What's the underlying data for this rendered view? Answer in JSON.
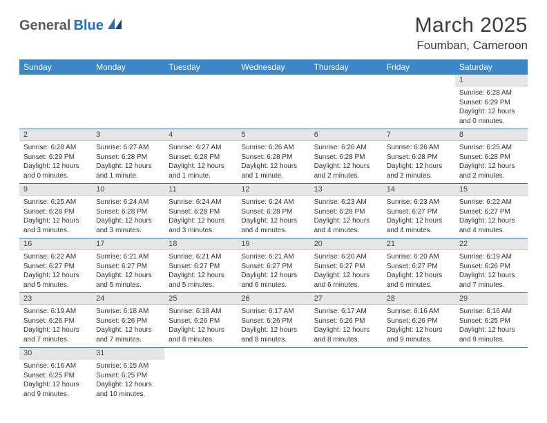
{
  "logo": {
    "part1": "General",
    "part2": "Blue"
  },
  "title": "March 2025",
  "location": "Foumban, Cameroon",
  "colors": {
    "header_bg": "#3b87c8",
    "header_text": "#ffffff",
    "daynum_bg": "#e6e6e6",
    "cell_border": "#3b6fa8",
    "logo_gray": "#5a5a5a",
    "logo_blue": "#2a6fb5"
  },
  "weekdays": [
    "Sunday",
    "Monday",
    "Tuesday",
    "Wednesday",
    "Thursday",
    "Friday",
    "Saturday"
  ],
  "weeks": [
    [
      null,
      null,
      null,
      null,
      null,
      null,
      {
        "n": "1",
        "sunrise": "Sunrise: 6:28 AM",
        "sunset": "Sunset: 6:29 PM",
        "day1": "Daylight: 12 hours",
        "day2": "and 0 minutes."
      }
    ],
    [
      {
        "n": "2",
        "sunrise": "Sunrise: 6:28 AM",
        "sunset": "Sunset: 6:29 PM",
        "day1": "Daylight: 12 hours",
        "day2": "and 0 minutes."
      },
      {
        "n": "3",
        "sunrise": "Sunrise: 6:27 AM",
        "sunset": "Sunset: 6:28 PM",
        "day1": "Daylight: 12 hours",
        "day2": "and 1 minute."
      },
      {
        "n": "4",
        "sunrise": "Sunrise: 6:27 AM",
        "sunset": "Sunset: 6:28 PM",
        "day1": "Daylight: 12 hours",
        "day2": "and 1 minute."
      },
      {
        "n": "5",
        "sunrise": "Sunrise: 6:26 AM",
        "sunset": "Sunset: 6:28 PM",
        "day1": "Daylight: 12 hours",
        "day2": "and 1 minute."
      },
      {
        "n": "6",
        "sunrise": "Sunrise: 6:26 AM",
        "sunset": "Sunset: 6:28 PM",
        "day1": "Daylight: 12 hours",
        "day2": "and 2 minutes."
      },
      {
        "n": "7",
        "sunrise": "Sunrise: 6:26 AM",
        "sunset": "Sunset: 6:28 PM",
        "day1": "Daylight: 12 hours",
        "day2": "and 2 minutes."
      },
      {
        "n": "8",
        "sunrise": "Sunrise: 6:25 AM",
        "sunset": "Sunset: 6:28 PM",
        "day1": "Daylight: 12 hours",
        "day2": "and 2 minutes."
      }
    ],
    [
      {
        "n": "9",
        "sunrise": "Sunrise: 6:25 AM",
        "sunset": "Sunset: 6:28 PM",
        "day1": "Daylight: 12 hours",
        "day2": "and 3 minutes."
      },
      {
        "n": "10",
        "sunrise": "Sunrise: 6:24 AM",
        "sunset": "Sunset: 6:28 PM",
        "day1": "Daylight: 12 hours",
        "day2": "and 3 minutes."
      },
      {
        "n": "11",
        "sunrise": "Sunrise: 6:24 AM",
        "sunset": "Sunset: 6:28 PM",
        "day1": "Daylight: 12 hours",
        "day2": "and 3 minutes."
      },
      {
        "n": "12",
        "sunrise": "Sunrise: 6:24 AM",
        "sunset": "Sunset: 6:28 PM",
        "day1": "Daylight: 12 hours",
        "day2": "and 4 minutes."
      },
      {
        "n": "13",
        "sunrise": "Sunrise: 6:23 AM",
        "sunset": "Sunset: 6:28 PM",
        "day1": "Daylight: 12 hours",
        "day2": "and 4 minutes."
      },
      {
        "n": "14",
        "sunrise": "Sunrise: 6:23 AM",
        "sunset": "Sunset: 6:27 PM",
        "day1": "Daylight: 12 hours",
        "day2": "and 4 minutes."
      },
      {
        "n": "15",
        "sunrise": "Sunrise: 6:22 AM",
        "sunset": "Sunset: 6:27 PM",
        "day1": "Daylight: 12 hours",
        "day2": "and 4 minutes."
      }
    ],
    [
      {
        "n": "16",
        "sunrise": "Sunrise: 6:22 AM",
        "sunset": "Sunset: 6:27 PM",
        "day1": "Daylight: 12 hours",
        "day2": "and 5 minutes."
      },
      {
        "n": "17",
        "sunrise": "Sunrise: 6:21 AM",
        "sunset": "Sunset: 6:27 PM",
        "day1": "Daylight: 12 hours",
        "day2": "and 5 minutes."
      },
      {
        "n": "18",
        "sunrise": "Sunrise: 6:21 AM",
        "sunset": "Sunset: 6:27 PM",
        "day1": "Daylight: 12 hours",
        "day2": "and 5 minutes."
      },
      {
        "n": "19",
        "sunrise": "Sunrise: 6:21 AM",
        "sunset": "Sunset: 6:27 PM",
        "day1": "Daylight: 12 hours",
        "day2": "and 6 minutes."
      },
      {
        "n": "20",
        "sunrise": "Sunrise: 6:20 AM",
        "sunset": "Sunset: 6:27 PM",
        "day1": "Daylight: 12 hours",
        "day2": "and 6 minutes."
      },
      {
        "n": "21",
        "sunrise": "Sunrise: 6:20 AM",
        "sunset": "Sunset: 6:27 PM",
        "day1": "Daylight: 12 hours",
        "day2": "and 6 minutes."
      },
      {
        "n": "22",
        "sunrise": "Sunrise: 6:19 AM",
        "sunset": "Sunset: 6:26 PM",
        "day1": "Daylight: 12 hours",
        "day2": "and 7 minutes."
      }
    ],
    [
      {
        "n": "23",
        "sunrise": "Sunrise: 6:19 AM",
        "sunset": "Sunset: 6:26 PM",
        "day1": "Daylight: 12 hours",
        "day2": "and 7 minutes."
      },
      {
        "n": "24",
        "sunrise": "Sunrise: 6:18 AM",
        "sunset": "Sunset: 6:26 PM",
        "day1": "Daylight: 12 hours",
        "day2": "and 7 minutes."
      },
      {
        "n": "25",
        "sunrise": "Sunrise: 6:18 AM",
        "sunset": "Sunset: 6:26 PM",
        "day1": "Daylight: 12 hours",
        "day2": "and 8 minutes."
      },
      {
        "n": "26",
        "sunrise": "Sunrise: 6:17 AM",
        "sunset": "Sunset: 6:26 PM",
        "day1": "Daylight: 12 hours",
        "day2": "and 8 minutes."
      },
      {
        "n": "27",
        "sunrise": "Sunrise: 6:17 AM",
        "sunset": "Sunset: 6:26 PM",
        "day1": "Daylight: 12 hours",
        "day2": "and 8 minutes."
      },
      {
        "n": "28",
        "sunrise": "Sunrise: 6:16 AM",
        "sunset": "Sunset: 6:26 PM",
        "day1": "Daylight: 12 hours",
        "day2": "and 9 minutes."
      },
      {
        "n": "29",
        "sunrise": "Sunrise: 6:16 AM",
        "sunset": "Sunset: 6:25 PM",
        "day1": "Daylight: 12 hours",
        "day2": "and 9 minutes."
      }
    ],
    [
      {
        "n": "30",
        "sunrise": "Sunrise: 6:16 AM",
        "sunset": "Sunset: 6:25 PM",
        "day1": "Daylight: 12 hours",
        "day2": "and 9 minutes."
      },
      {
        "n": "31",
        "sunrise": "Sunrise: 6:15 AM",
        "sunset": "Sunset: 6:25 PM",
        "day1": "Daylight: 12 hours",
        "day2": "and 10 minutes."
      },
      null,
      null,
      null,
      null,
      null
    ]
  ]
}
